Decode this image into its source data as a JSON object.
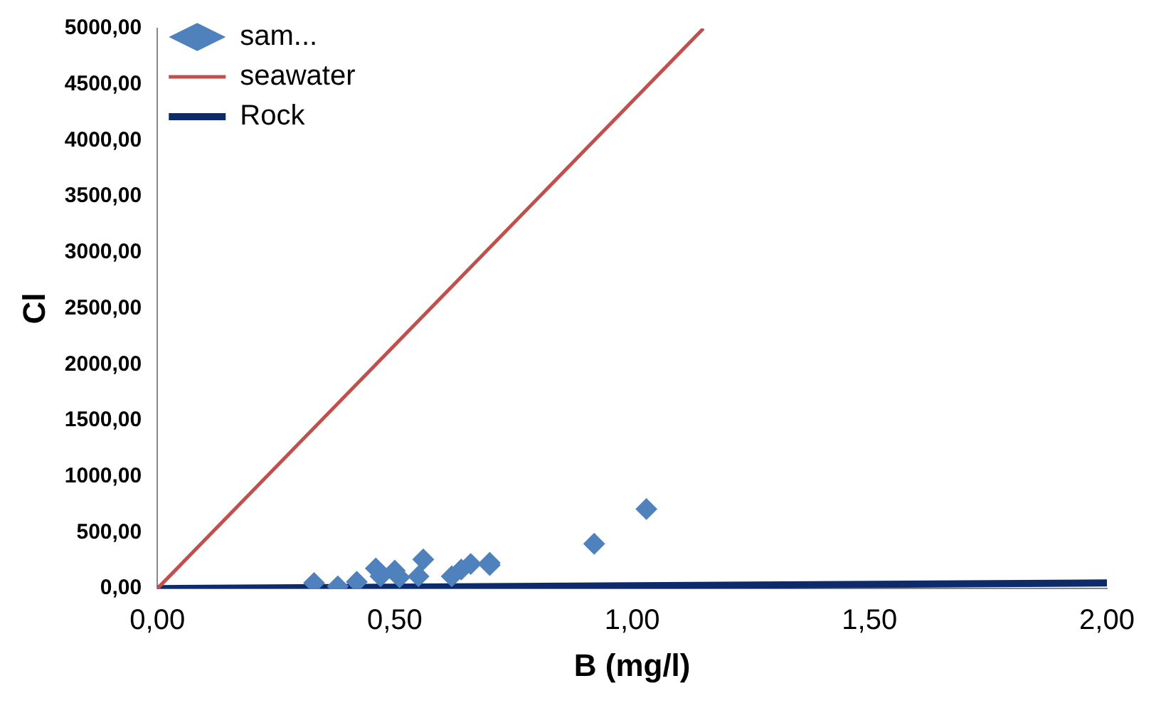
{
  "chart_data": {
    "type": "scatter",
    "xlabel": "B (mg/l)",
    "ylabel": "Cl",
    "xlim": [
      0,
      2
    ],
    "xticks": [
      {
        "value": 0,
        "label": "0,00"
      },
      {
        "value": 0.5,
        "label": "0,50"
      },
      {
        "value": 1,
        "label": "1,00"
      },
      {
        "value": 1.5,
        "label": "1,50"
      },
      {
        "value": 2,
        "label": "2,00"
      }
    ],
    "ylim": [
      0,
      5000
    ],
    "yticks": [
      {
        "value": 0,
        "label": "0,00"
      },
      {
        "value": 500,
        "label": "500,00"
      },
      {
        "value": 1000,
        "label": "1000,00"
      },
      {
        "value": 1500,
        "label": "1500,00"
      },
      {
        "value": 2000,
        "label": "2000,00"
      },
      {
        "value": 2500,
        "label": "2500,00"
      },
      {
        "value": 3000,
        "label": "3000,00"
      },
      {
        "value": 3500,
        "label": "3500,00"
      },
      {
        "value": 4000,
        "label": "4000,00"
      },
      {
        "value": 4500,
        "label": "4500,00"
      },
      {
        "value": 5000,
        "label": "5000,00"
      }
    ],
    "grid": false,
    "legend": "top left",
    "series": [
      {
        "name": "sam...",
        "marker": "diamond",
        "color": "#4f81bd",
        "x": [
          0.33,
          0.38,
          0.42,
          0.46,
          0.47,
          0.5,
          0.51,
          0.55,
          0.56,
          0.62,
          0.64,
          0.66,
          0.7,
          0.7,
          0.92,
          1.03
        ],
        "values": [
          50,
          20,
          60,
          180,
          110,
          160,
          100,
          110,
          260,
          110,
          170,
          220,
          230,
          210,
          400,
          710
        ]
      },
      {
        "name": "seawater",
        "type": "line",
        "marker": "none",
        "color": "#c0504d",
        "x": [
          0,
          1.15
        ],
        "values": [
          0,
          5000
        ]
      },
      {
        "name": "Rock",
        "type": "line",
        "marker": "none",
        "color": "#0d2a6b",
        "x": [
          0,
          2
        ],
        "values": [
          0,
          50
        ]
      }
    ]
  }
}
